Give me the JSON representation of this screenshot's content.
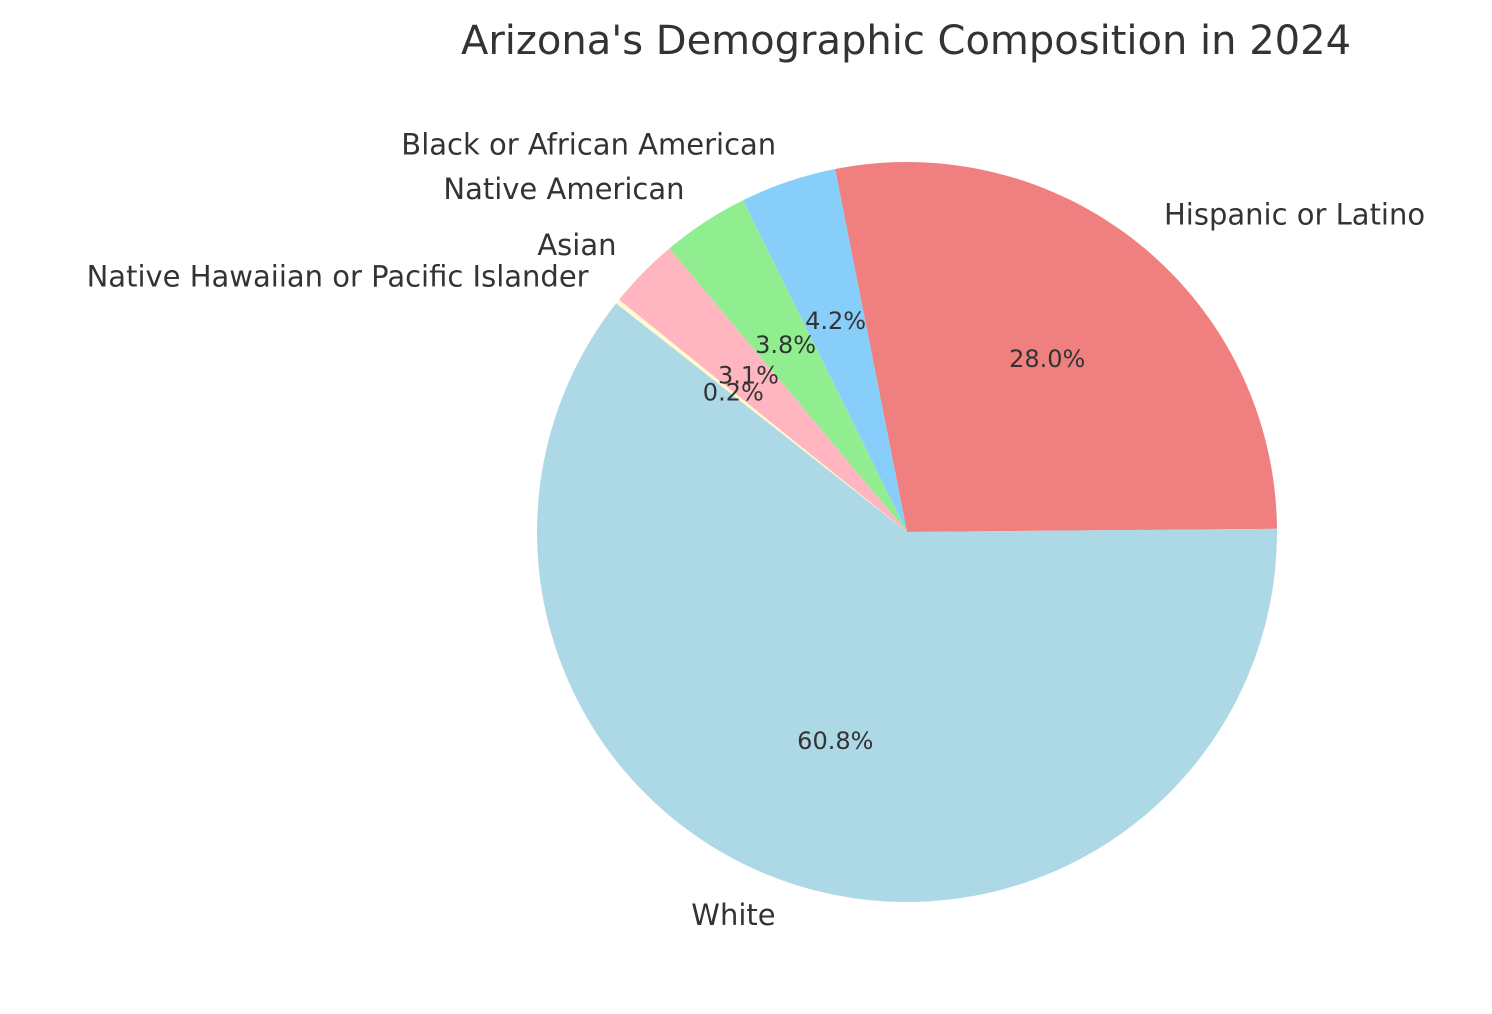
{
  "chart_data": {
    "type": "pie",
    "title": "Arizona's Demographic Composition in 2024",
    "start_angle_deg": 0.5,
    "direction": "counterclockwise",
    "slices": [
      {
        "label": "Hispanic or Latino",
        "value": 28.0,
        "pct_label": "28.0%",
        "color": "#f08080"
      },
      {
        "label": "Black or African American",
        "value": 4.2,
        "pct_label": "4.2%",
        "color": "#87cefa"
      },
      {
        "label": "Native American",
        "value": 3.8,
        "pct_label": "3.8%",
        "color": "#90ee90"
      },
      {
        "label": "Asian",
        "value": 3.1,
        "pct_label": "3.1%",
        "color": "#ffb6c1"
      },
      {
        "label": "Native Hawaiian or Pacific Islander",
        "value": 0.2,
        "pct_label": "0.2%",
        "color": "#fffacd"
      },
      {
        "label": "White",
        "value": 60.8,
        "pct_label": "60.8%",
        "color": "#add8e6"
      }
    ]
  }
}
